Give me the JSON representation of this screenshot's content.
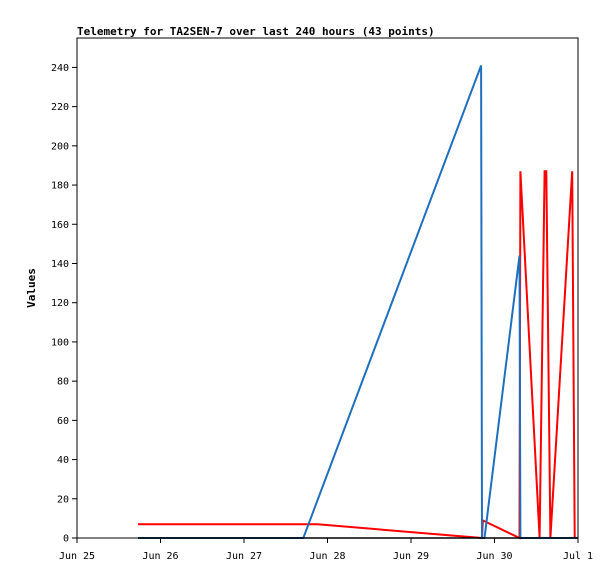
{
  "chart_data": {
    "type": "line",
    "title": "Telemetry for TA2SEN-7 over last 240 hours (43 points)",
    "xlabel": "",
    "ylabel": "Values",
    "x_ticks": [
      "Jun 25",
      "Jun 26",
      "Jun 27",
      "Jun 28",
      "Jun 29",
      "Jun 30",
      "Jul 1"
    ],
    "xlim": [
      0,
      6
    ],
    "ylim": [
      0,
      255
    ],
    "y_ticks": [
      0,
      20,
      40,
      60,
      80,
      100,
      120,
      140,
      160,
      180,
      200,
      220,
      240
    ],
    "grid": false,
    "series": [
      {
        "color": "#ff0000",
        "width": 2,
        "x": [
          0.73,
          2.88,
          4.85,
          4.86,
          5.3,
          5.31,
          5.54,
          5.6,
          5.62,
          5.67,
          5.93,
          5.96
        ],
        "y": [
          7,
          7,
          0,
          9,
          0,
          187,
          0,
          187,
          187,
          0,
          187,
          0
        ]
      },
      {
        "color": "#1f6fbf",
        "width": 2,
        "x": [
          0.73,
          2.71,
          4.84,
          4.85,
          4.88,
          5.3,
          5.31,
          6.0
        ],
        "y": [
          0,
          0,
          241,
          0,
          0,
          144,
          0,
          0
        ]
      },
      {
        "color": "#000000",
        "width": 1.5,
        "x": [
          0.73,
          6.0
        ],
        "y": [
          0,
          0
        ]
      }
    ]
  }
}
